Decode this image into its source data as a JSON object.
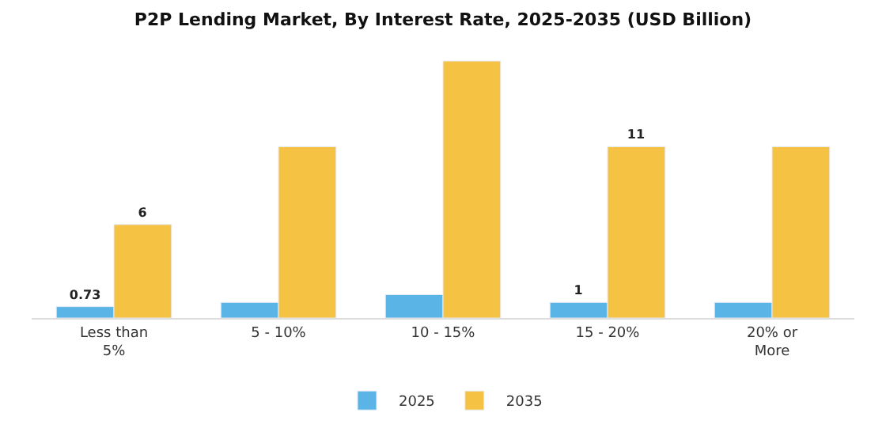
{
  "chart_data": {
    "type": "bar",
    "title": "P2P Lending Market, By Interest Rate, 2025-2035 (USD Billion)",
    "categories": [
      "Less than\n5%",
      "5 - 10%",
      "10 - 15%",
      "15 - 20%",
      "20% or\nMore"
    ],
    "series": [
      {
        "name": "2025",
        "color": "#5ab4e5",
        "values": [
          0.73,
          1,
          1.5,
          1,
          1
        ],
        "value_labels": [
          "0.73",
          null,
          null,
          "1",
          null
        ]
      },
      {
        "name": "2035",
        "color": "#f6c244",
        "values": [
          6,
          11,
          16.5,
          11,
          11
        ],
        "value_labels": [
          "6",
          null,
          null,
          "11",
          null
        ]
      }
    ],
    "tick_labels": "x",
    "legend": "bottom"
  }
}
